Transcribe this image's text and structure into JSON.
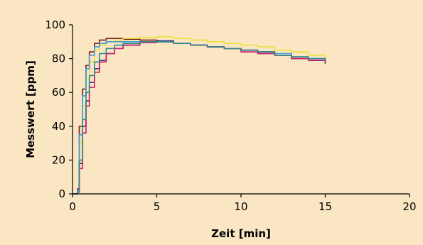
{
  "chart_data": {
    "type": "line",
    "title": "",
    "xlabel": "Zeit  [min]",
    "ylabel": "Messwert  [ppm]",
    "xlim": [
      0,
      20
    ],
    "ylim": [
      0,
      100
    ],
    "xticks": [
      0,
      5,
      10,
      15,
      20
    ],
    "yticks": [
      0,
      20,
      40,
      60,
      80,
      100
    ],
    "grid": false,
    "legend": "none",
    "background": "#fae6c3",
    "series": [
      {
        "color": "#7b1c1c",
        "x": [
          0,
          0.2,
          0.3,
          0.4,
          0.6,
          0.8,
          1.0,
          1.3,
          1.6,
          2.0,
          2.5,
          3.0,
          4.0,
          5.0,
          6.0,
          7.0,
          8.0,
          9.0,
          10.0,
          11.0,
          12.0,
          13.0,
          14.0,
          15.0
        ],
        "y": [
          0,
          0,
          3,
          40,
          62,
          76,
          84,
          89,
          91,
          92,
          92,
          91.5,
          91,
          90,
          89,
          88,
          87,
          86,
          85,
          83,
          82,
          80,
          79,
          77
        ]
      },
      {
        "color": "#e8e23c",
        "x": [
          0,
          0.2,
          0.3,
          0.4,
          0.6,
          0.8,
          1.0,
          1.3,
          1.6,
          2.0,
          2.5,
          3.0,
          4.0,
          5.0,
          6.0,
          7.0,
          8.0,
          9.0,
          10.0,
          11.0,
          12.0,
          13.0,
          14.0,
          15.0
        ],
        "y": [
          0,
          0,
          2,
          30,
          52,
          68,
          78,
          85,
          88,
          90,
          91,
          92,
          92.5,
          93,
          92,
          91,
          90,
          89,
          88,
          87,
          85,
          84,
          82,
          80
        ]
      },
      {
        "color": "#3a9bd8",
        "x": [
          0,
          0.2,
          0.3,
          0.4,
          0.6,
          0.8,
          1.0,
          1.3,
          1.6,
          2.0,
          2.5,
          3.0,
          4.0,
          5.0,
          6.0,
          7.0,
          8.0,
          9.0,
          10.0,
          11.0,
          12.0,
          13.0,
          14.0,
          15.0
        ],
        "y": [
          0,
          0,
          2,
          35,
          58,
          74,
          82,
          87,
          89,
          90,
          90,
          90,
          90,
          90,
          89,
          88,
          87,
          86,
          85,
          84,
          83,
          81,
          80,
          79
        ]
      },
      {
        "color": "#2a2a7a",
        "x": [
          0,
          0.2,
          0.3,
          0.4,
          0.6,
          0.8,
          1.0,
          1.3,
          1.6,
          2.0,
          2.5,
          3.0,
          4.0,
          5.0,
          6.0,
          7.0,
          8.0,
          9.0,
          10.0,
          11.0,
          12.0,
          13.0,
          14.0,
          15.0
        ],
        "y": [
          0,
          0,
          1,
          18,
          40,
          55,
          66,
          74,
          79,
          83,
          86,
          88,
          90,
          90.5,
          89,
          88,
          87,
          86,
          85,
          84,
          82,
          81,
          79,
          78
        ]
      },
      {
        "color": "#d01a72",
        "x": [
          0,
          0.2,
          0.3,
          0.4,
          0.6,
          0.8,
          1.0,
          1.3,
          1.6,
          2.0,
          2.5,
          3.0,
          4.0,
          5.0,
          6.0,
          7.0,
          8.0,
          9.0,
          10.0,
          11.0,
          12.0,
          13.0,
          14.0,
          15.0
        ],
        "y": [
          0,
          0,
          1,
          15,
          36,
          52,
          63,
          72,
          78,
          83,
          86,
          88,
          89.5,
          90,
          89,
          88,
          87,
          86,
          84,
          83,
          82,
          80,
          79,
          78
        ]
      },
      {
        "color": "#2b8a8a",
        "x": [
          0,
          0.2,
          0.3,
          0.4,
          0.6,
          0.8,
          1.0,
          1.3,
          1.6,
          2.0,
          2.5,
          3.0,
          4.0,
          5.0,
          6.0,
          7.0,
          8.0,
          9.0,
          10.0,
          11.0,
          12.0,
          13.0,
          14.0,
          15.0
        ],
        "y": [
          0,
          0,
          1,
          20,
          44,
          60,
          70,
          78,
          83,
          86,
          88,
          89,
          90,
          90,
          89,
          88,
          87,
          86,
          85,
          84,
          82,
          81,
          80,
          78
        ]
      }
    ]
  }
}
